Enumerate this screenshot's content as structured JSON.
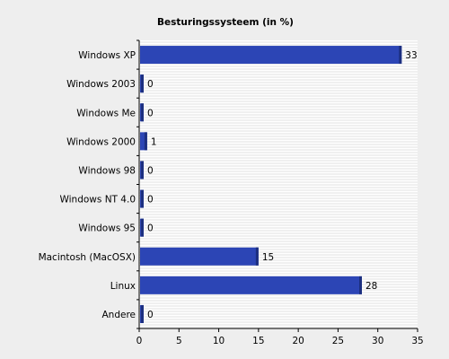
{
  "chart_data": {
    "type": "bar",
    "orientation": "horizontal",
    "title": "Besturingssysteem (in %)",
    "xlabel": "",
    "ylabel": "",
    "categories": [
      "Windows XP",
      "Windows 2003",
      "Windows Me",
      "Windows 2000",
      "Windows 98",
      "Windows NT 4.0",
      "Windows 95",
      "Macintosh (MacOSX)",
      "Linux",
      "Andere"
    ],
    "values": [
      33,
      0,
      0,
      1,
      0,
      0,
      0,
      15,
      28,
      0
    ],
    "value_labels": [
      "33",
      "0",
      "0",
      "1",
      "0",
      "0",
      "0",
      "15",
      "28",
      "0"
    ],
    "xlim": [
      0,
      35
    ],
    "x_ticks": [
      0,
      5,
      10,
      15,
      20,
      25,
      30,
      35
    ],
    "x_tick_labels": [
      "0",
      "5",
      "10",
      "15",
      "20",
      "25",
      "30",
      "35"
    ],
    "grid": true,
    "legend": "none",
    "colors": {
      "background": "#eeeeee",
      "plot_background": "#ffffff",
      "grid_line": "#e2e2e2",
      "bar_fill": "#2c45b5",
      "bar_shadow": "#1c2f80",
      "axis": "#000000"
    }
  }
}
